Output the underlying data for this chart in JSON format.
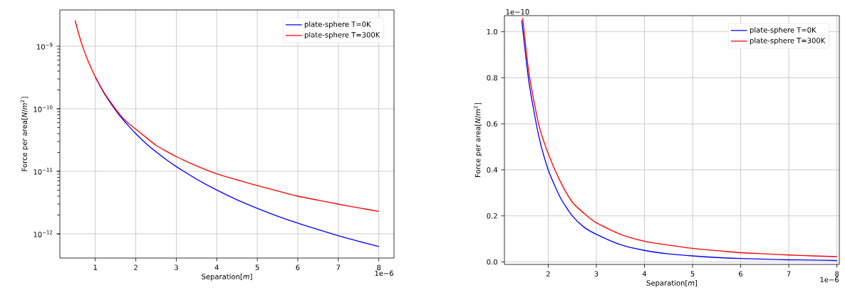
{
  "chart_data": [
    {
      "type": "line",
      "xlabel": "Separation[*m*]",
      "ylabel": "Force per area[*N*/*m*$^{2}$]",
      "log": "y",
      "grid": true,
      "legend": "top right",
      "xlim": [
        0.125,
        8.375
      ],
      "ylim": [
        4.1e-13,
        3.8e-09
      ],
      "xticks": [
        1,
        2,
        3,
        4,
        5,
        6,
        7,
        8
      ],
      "yticks": [
        {
          "value": 1e-12,
          "label": "10$^{−12}$"
        },
        {
          "value": 1e-11,
          "label": "10$^{−11}$"
        },
        {
          "value": 1e-10,
          "label": "10$^{−10}$"
        },
        {
          "value": 1e-09,
          "label": "10$^{−9}$"
        }
      ],
      "annotations": [
        "1e−6"
      ],
      "series": [
        {
          "name": "plate-sphere T=0K",
          "color": "#0000ff",
          "x": [
            1,
            1.2,
            1.4,
            1.6,
            1.8,
            2,
            2.25,
            2.5,
            2.75,
            3,
            3.5,
            4,
            4.5,
            5,
            5.5,
            6,
            6.5,
            7,
            7.5,
            8
          ],
          "values": [
            3.2e-10,
            1.85e-10,
            1.17e-10,
            7.8e-11,
            5.5e-11,
            4e-11,
            2.8e-11,
            2.05e-11,
            1.54e-11,
            1.19e-11,
            7.5e-12,
            5e-12,
            3.5e-12,
            2.56e-12,
            1.92e-12,
            1.48e-12,
            1.17e-12,
            9.3e-13,
            7.6e-13,
            6.25e-13
          ]
        },
        {
          "name": "plate-sphere T=300K",
          "color": "#ff0000",
          "x": [
            0.5,
            0.6,
            0.7,
            0.8,
            0.9,
            1,
            1.2,
            1.4,
            1.6,
            1.8,
            2,
            2.25,
            2.5,
            2.75,
            3,
            3.5,
            4,
            4.5,
            5,
            5.5,
            6,
            6.5,
            7,
            7.5,
            8
          ],
          "values": [
            2.6e-09,
            1.5e-09,
            9.4e-10,
            6.3e-10,
            4.45e-10,
            3.25e-10,
            1.9e-10,
            1.22e-10,
            8.2e-11,
            6e-11,
            4.7e-11,
            3.5e-11,
            2.6e-11,
            2.1e-11,
            1.72e-11,
            1.22e-11,
            9.1e-12,
            7.3e-12,
            5.9e-12,
            4.85e-12,
            4e-12,
            3.45e-12,
            2.98e-12,
            2.6e-12,
            2.29e-12
          ]
        }
      ]
    },
    {
      "type": "line",
      "xlabel": "Separation[*m*]",
      "ylabel": "Force per area[*N*/*m*$^{2}$]",
      "grid": true,
      "legend": "top right",
      "xlim": [
        1.09,
        8.05
      ],
      "ylim": [
        -0.011,
        1.07
      ],
      "xticks": [
        2,
        3,
        4,
        5,
        6,
        7,
        8
      ],
      "yticks": [
        {
          "value": 0,
          "label": "0.0"
        },
        {
          "value": 0.2,
          "label": "0.2"
        },
        {
          "value": 0.4,
          "label": "0.4"
        },
        {
          "value": 0.6,
          "label": "0.6"
        },
        {
          "value": 0.8,
          "label": "0.8"
        },
        {
          "value": 1,
          "label": "1.0"
        }
      ],
      "annotations": [
        "1e−6",
        "1e−10"
      ],
      "series": [
        {
          "name": "plate-sphere T=0K",
          "color": "#0000ff",
          "x": [
            1.45,
            1.6,
            1.8,
            2,
            2.25,
            2.5,
            2.75,
            3,
            3.5,
            4,
            4.5,
            5,
            5.5,
            6,
            6.5,
            7,
            7.5,
            8
          ],
          "values": [
            1.05,
            0.78,
            0.55,
            0.4,
            0.28,
            0.2,
            0.15,
            0.12,
            0.075,
            0.05,
            0.035,
            0.026,
            0.019,
            0.015,
            0.012,
            0.009,
            0.008,
            0.006
          ]
        },
        {
          "name": "plate-sphere T=300K",
          "color": "#ff0000",
          "x": [
            1.47,
            1.6,
            1.8,
            2,
            2.25,
            2.5,
            2.75,
            3,
            3.5,
            4,
            4.5,
            5,
            5.5,
            6,
            6.5,
            7,
            7.5,
            8
          ],
          "values": [
            1.06,
            0.82,
            0.6,
            0.47,
            0.35,
            0.26,
            0.21,
            0.17,
            0.12,
            0.09,
            0.073,
            0.059,
            0.049,
            0.04,
            0.035,
            0.03,
            0.026,
            0.023
          ]
        }
      ]
    }
  ]
}
